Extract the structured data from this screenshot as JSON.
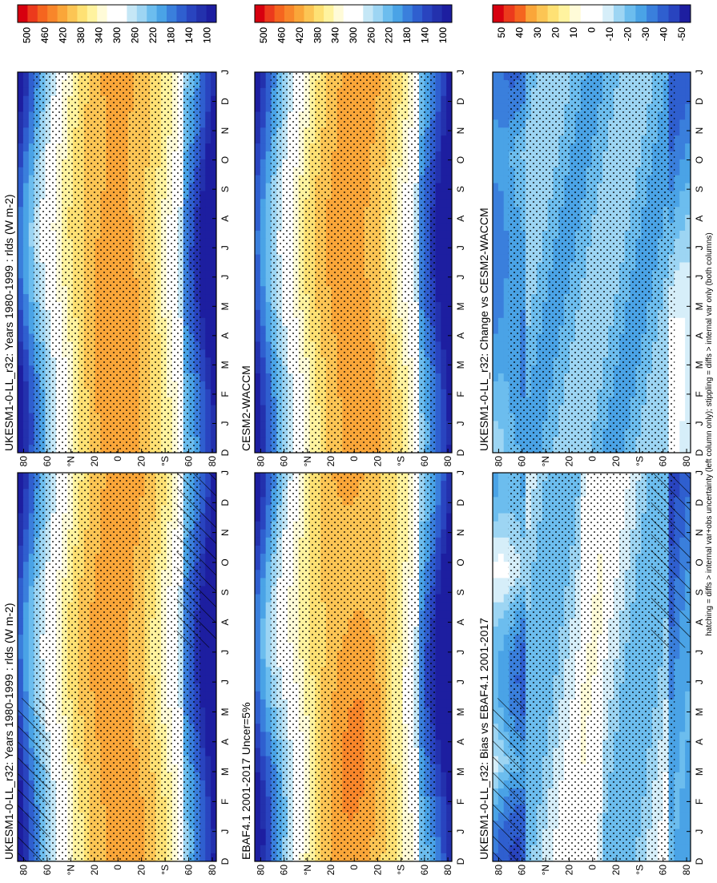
{
  "figure": {
    "footer": "hatching = diffs > internal var+obs uncertainty (left column only); stippling = diffs > internal var only (both columns)"
  },
  "chart_data": [
    {
      "type": "heatmap",
      "title": "UKESM1-0-LL_r32: Years 1980-1999 : rlds (W m-2)",
      "x_ticks": [
        "D",
        "J",
        "F",
        "M",
        "A",
        "M",
        "J",
        "J",
        "A",
        "S",
        "O",
        "N",
        "D",
        "J"
      ],
      "y_ticks": [
        "80",
        "60",
        "°N",
        "20",
        "0",
        "20",
        "°S",
        "60",
        "80"
      ],
      "field": "abs",
      "hatching": true,
      "colorbar_ticks": [
        "500",
        "460",
        "420",
        "380",
        "340",
        "300",
        "260",
        "220",
        "180",
        "140",
        "100"
      ]
    },
    {
      "type": "heatmap",
      "title": "UKESM1-0-LL_r32: Years 1980-1999 : rlds (W m-2)",
      "x_ticks": [
        "D",
        "J",
        "F",
        "M",
        "A",
        "M",
        "J",
        "J",
        "A",
        "S",
        "O",
        "N",
        "D",
        "J"
      ],
      "y_ticks": [
        "80",
        "60",
        "°N",
        "20",
        "0",
        "20",
        "°S",
        "60",
        "80"
      ],
      "field": "abs",
      "hatching": false,
      "colorbar_ticks": [
        "500",
        "460",
        "420",
        "380",
        "340",
        "300",
        "260",
        "220",
        "180",
        "140",
        "100"
      ]
    },
    {
      "type": "heatmap",
      "title": "EBAF4.1 2001-2017 Uncer=5%",
      "x_ticks": [
        "D",
        "J",
        "F",
        "M",
        "A",
        "M",
        "J",
        "J",
        "A",
        "S",
        "O",
        "N",
        "D",
        "J"
      ],
      "y_ticks": [
        "80",
        "60",
        "°N",
        "20",
        "0",
        "20",
        "°S",
        "60",
        "80"
      ],
      "field": "abs",
      "hatching": false,
      "colorbar_ticks": [
        "500",
        "460",
        "420",
        "380",
        "340",
        "300",
        "260",
        "220",
        "180",
        "140",
        "100"
      ]
    },
    {
      "type": "heatmap",
      "title": "CESM2-WACCM",
      "x_ticks": [
        "D",
        "J",
        "F",
        "M",
        "A",
        "M",
        "J",
        "J",
        "A",
        "S",
        "O",
        "N",
        "D",
        "J"
      ],
      "y_ticks": [
        "80",
        "60",
        "°N",
        "20",
        "0",
        "20",
        "°S",
        "60",
        "80"
      ],
      "field": "abs",
      "hatching": false,
      "colorbar_ticks": [
        "500",
        "460",
        "420",
        "380",
        "340",
        "300",
        "260",
        "220",
        "180",
        "140",
        "100"
      ]
    },
    {
      "type": "heatmap",
      "title": "UKESM1-0-LL_r32: Bias vs EBAF4.1 2001-2017",
      "x_ticks": [
        "D",
        "J",
        "F",
        "M",
        "A",
        "M",
        "J",
        "J",
        "A",
        "S",
        "O",
        "N",
        "D",
        "J"
      ],
      "y_ticks": [
        "80",
        "60",
        "°N",
        "20",
        "0",
        "20",
        "°S",
        "60",
        "80"
      ],
      "field": "bias",
      "hatching": true,
      "colorbar_ticks": [
        "50",
        "40",
        "30",
        "20",
        "10",
        "0",
        "-10",
        "-20",
        "-30",
        "-40",
        "-50"
      ]
    },
    {
      "type": "heatmap",
      "title": "UKESM1-0-LL_r32: Change vs CESM2-WACCM",
      "x_ticks": [
        "D",
        "J",
        "F",
        "M",
        "A",
        "M",
        "J",
        "J",
        "A",
        "S",
        "O",
        "N",
        "D",
        "J"
      ],
      "y_ticks": [
        "80",
        "60",
        "°N",
        "20",
        "0",
        "20",
        "°S",
        "60",
        "80"
      ],
      "field": "change",
      "hatching": false,
      "colorbar_ticks": [
        "50",
        "40",
        "30",
        "20",
        "10",
        "0",
        "-10",
        "-20",
        "-30",
        "-40",
        "-50"
      ]
    }
  ]
}
